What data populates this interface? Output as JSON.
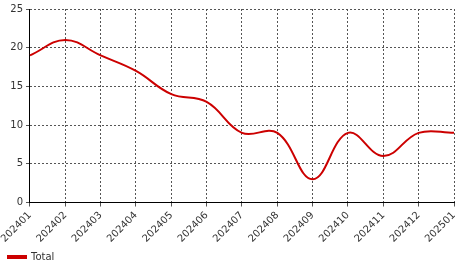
{
  "chart_data": {
    "type": "line",
    "categories": [
      "202401",
      "202402",
      "202403",
      "202404",
      "202405",
      "202406",
      "202407",
      "202408",
      "202409",
      "202410",
      "202411",
      "202412",
      "202501"
    ],
    "series": [
      {
        "name": "Total",
        "color": "#cc0000",
        "values": [
          19,
          21,
          19,
          17,
          14,
          13,
          9,
          9,
          3,
          9,
          6,
          9,
          9
        ]
      }
    ],
    "ylim": [
      0,
      25
    ],
    "yticks": [
      0,
      5,
      10,
      15,
      20,
      25
    ],
    "grid": true,
    "legend": "lower left"
  }
}
